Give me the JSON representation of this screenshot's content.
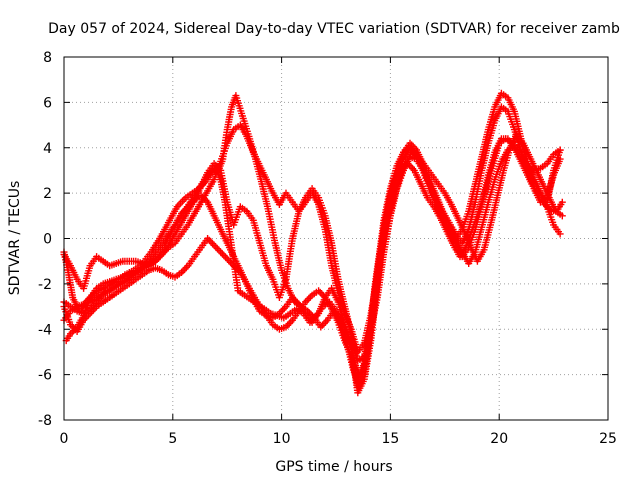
{
  "chart_data": {
    "type": "scatter",
    "title": "Day 057 of 2024, Sidereal Day-to-day VTEC variation (SDTVAR) for receiver zamb",
    "xlabel": "GPS time / hours",
    "ylabel": "SDTVAR / TECUs",
    "xlim": [
      0,
      25
    ],
    "ylim": [
      -8,
      8
    ],
    "x_ticks": [
      "0",
      "5",
      "10",
      "15",
      "20",
      "25"
    ],
    "y_ticks": [
      "-8",
      "-6",
      "-4",
      "-2",
      "0",
      "2",
      "4",
      "6",
      "8"
    ],
    "grid": true,
    "legend": "none",
    "marker": "+",
    "color": "#ff0000",
    "series": [
      {
        "x": [
          0.0,
          0.2,
          0.4,
          0.7,
          1.0,
          1.3,
          1.6,
          2.0,
          2.4,
          2.8,
          3.2,
          3.6,
          4.0,
          4.4,
          4.8,
          5.2,
          5.6,
          5.9,
          6.2,
          6.5,
          6.8,
          7.0,
          7.2,
          7.4,
          7.6,
          7.8,
          8.0,
          8.3,
          8.6,
          8.9,
          9.2,
          9.5,
          9.8,
          10.1,
          10.4,
          10.7,
          11.0,
          11.3,
          11.6,
          11.9,
          12.2,
          12.5,
          12.8,
          13.1,
          13.3,
          13.5,
          13.7,
          13.9,
          14.1,
          14.3,
          14.6,
          14.9,
          15.2,
          15.5,
          15.8,
          16.1,
          16.4,
          16.7,
          17.0,
          17.3,
          17.6,
          17.9,
          18.2,
          18.5,
          18.8,
          19.1,
          19.4,
          19.7,
          20.0,
          20.3,
          20.6,
          20.9,
          21.2,
          21.5,
          21.8,
          22.1,
          22.4,
          22.7,
          22.9
        ],
        "y": [
          -0.6,
          -1.5,
          -2.6,
          -3.2,
          -2.8,
          -2.5,
          -2.3,
          -2.1,
          -1.9,
          -1.6,
          -1.4,
          -1.1,
          -0.6,
          0.0,
          0.7,
          1.4,
          1.8,
          2.0,
          2.2,
          2.5,
          2.9,
          3.1,
          2.6,
          1.6,
          0.3,
          -1.0,
          -2.3,
          -2.5,
          -2.7,
          -2.9,
          -3.1,
          -3.3,
          -3.4,
          -3.5,
          -3.3,
          -3.1,
          -3.3,
          -3.7,
          -3.4,
          -3.0,
          -2.8,
          -3.2,
          -4.0,
          -5.0,
          -5.8,
          -6.3,
          -6.0,
          -5.2,
          -3.8,
          -2.0,
          0.0,
          1.5,
          2.6,
          3.1,
          3.3,
          3.0,
          2.4,
          1.8,
          1.4,
          0.9,
          0.3,
          -0.3,
          -0.8,
          -0.3,
          0.5,
          1.3,
          2.2,
          3.2,
          4.2,
          4.4,
          4.2,
          3.6,
          3.0,
          2.4,
          1.9,
          1.5,
          1.2,
          1.3,
          1.6
        ]
      },
      {
        "x": [
          0.0,
          0.3,
          0.6,
          0.9,
          1.2,
          1.5,
          1.8,
          2.2,
          2.6,
          3.0,
          3.4,
          3.8,
          4.2,
          4.6,
          5.0,
          5.4,
          5.8,
          6.2,
          6.6,
          6.9,
          7.1,
          7.3,
          7.5,
          7.7,
          7.9,
          8.2,
          8.5,
          8.8,
          9.1,
          9.4,
          9.7,
          10.0,
          10.3,
          10.6,
          10.9,
          11.2,
          11.5,
          11.8,
          12.1,
          12.4,
          12.7,
          13.0,
          13.2,
          13.4,
          13.6,
          13.8,
          14.0,
          14.2,
          14.5,
          14.8,
          15.1,
          15.4,
          15.7,
          16.0,
          16.3,
          16.6,
          16.9,
          17.2,
          17.5,
          17.8,
          18.1,
          18.4,
          18.7,
          19.0,
          19.3,
          19.6,
          19.9,
          20.2,
          20.5,
          20.8,
          21.1,
          21.4,
          21.7,
          22.0,
          22.3,
          22.6,
          22.9
        ],
        "y": [
          -3.6,
          -3.2,
          -3.0,
          -2.9,
          -2.8,
          -2.6,
          -2.4,
          -2.2,
          -2.0,
          -1.8,
          -1.5,
          -1.2,
          -0.8,
          -0.3,
          0.4,
          1.0,
          1.6,
          2.2,
          2.8,
          3.1,
          3.0,
          3.5,
          4.8,
          5.8,
          6.3,
          5.4,
          4.5,
          3.5,
          2.4,
          1.2,
          -0.2,
          -1.4,
          -2.2,
          -2.8,
          -3.0,
          -3.2,
          -3.5,
          -3.9,
          -3.6,
          -3.2,
          -3.5,
          -4.2,
          -4.9,
          -5.6,
          -6.0,
          -5.5,
          -4.6,
          -3.2,
          -1.4,
          0.2,
          1.6,
          2.6,
          3.4,
          3.8,
          3.6,
          3.2,
          2.8,
          2.4,
          2.0,
          1.5,
          0.9,
          0.3,
          -0.4,
          -1.0,
          -0.5,
          0.6,
          1.8,
          3.0,
          4.0,
          4.6,
          4.2,
          3.6,
          3.0,
          2.4,
          1.8,
          1.2,
          1.0
        ]
      },
      {
        "x": [
          0.0,
          0.3,
          0.6,
          0.9,
          1.2,
          1.5,
          1.8,
          2.1,
          2.4,
          2.7,
          3.0,
          3.3,
          3.6,
          3.9,
          4.2,
          4.5,
          4.8,
          5.1,
          5.4,
          5.7,
          6.0,
          6.3,
          6.6,
          6.9,
          7.2,
          7.5,
          7.8,
          8.1,
          8.4,
          8.7,
          9.0,
          9.3,
          9.6,
          9.9,
          10.2,
          10.5,
          10.8,
          11.1,
          11.4,
          11.7,
          12.0,
          12.3,
          12.6,
          12.9,
          13.2,
          13.5,
          13.8,
          14.1,
          14.4,
          14.7,
          15.0,
          15.3,
          15.6,
          15.9,
          16.2,
          16.5,
          16.8,
          17.1,
          17.4,
          17.7,
          18.0,
          18.3,
          18.6,
          18.9,
          19.2,
          19.5,
          19.8,
          20.1,
          20.4,
          20.7,
          21.0,
          21.3,
          21.6,
          21.9,
          22.2,
          22.5,
          22.8
        ],
        "y": [
          -3.0,
          -3.8,
          -4.1,
          -3.6,
          -3.3,
          -3.0,
          -2.8,
          -2.6,
          -2.4,
          -2.2,
          -2.0,
          -1.8,
          -1.6,
          -1.4,
          -1.3,
          -1.4,
          -1.6,
          -1.7,
          -1.5,
          -1.2,
          -0.8,
          -0.4,
          0.0,
          -0.3,
          -0.6,
          -0.9,
          -1.2,
          -1.5,
          -2.0,
          -2.5,
          -3.0,
          -3.4,
          -3.8,
          -4.0,
          -3.9,
          -3.6,
          -3.2,
          -2.8,
          -2.5,
          -2.3,
          -2.6,
          -3.1,
          -3.7,
          -4.5,
          -5.2,
          -6.5,
          -6.0,
          -4.0,
          -1.5,
          0.8,
          2.2,
          3.2,
          3.8,
          4.0,
          3.6,
          3.0,
          2.2,
          1.5,
          0.8,
          0.3,
          -0.2,
          -0.8,
          -0.4,
          0.4,
          1.5,
          2.8,
          3.8,
          4.4,
          4.4,
          4.0,
          3.5,
          3.2,
          3.0,
          3.1,
          3.3,
          3.7,
          3.9
        ]
      },
      {
        "x": [
          0.1,
          0.3,
          0.6,
          0.9,
          1.2,
          1.5,
          1.8,
          2.1,
          2.4,
          2.7,
          3.0,
          3.3,
          3.6,
          3.9,
          4.2,
          4.5,
          4.8,
          5.1,
          5.4,
          5.7,
          6.0,
          6.3,
          6.6,
          6.9,
          7.2,
          7.5,
          7.8,
          8.1,
          8.4,
          8.7,
          9.0,
          9.3,
          9.6,
          9.9,
          10.2,
          10.5,
          10.8,
          11.1,
          11.4,
          11.7,
          12.0,
          12.3,
          12.6,
          12.9,
          13.2,
          13.5,
          13.8,
          14.1,
          14.4,
          14.7,
          15.0,
          15.3,
          15.6,
          15.9,
          16.2,
          16.5,
          16.8,
          17.1,
          17.4,
          17.7,
          18.0,
          18.3,
          18.6,
          18.9,
          19.2,
          19.5,
          19.8,
          20.1,
          20.4,
          20.7,
          21.0,
          21.3,
          21.6,
          21.9,
          22.2,
          22.5,
          22.8
        ],
        "y": [
          -4.5,
          -4.2,
          -3.9,
          -3.4,
          -2.6,
          -2.2,
          -2.0,
          -1.9,
          -1.8,
          -1.7,
          -1.6,
          -1.5,
          -1.3,
          -1.0,
          -0.6,
          -0.2,
          0.2,
          0.6,
          1.1,
          1.4,
          1.7,
          1.9,
          1.6,
          1.0,
          0.4,
          -0.2,
          -0.8,
          -1.4,
          -2.0,
          -2.7,
          -3.2,
          -3.4,
          -3.5,
          -3.3,
          -3.0,
          -2.6,
          -2.9,
          -3.3,
          -3.7,
          -3.3,
          -2.6,
          -2.2,
          -2.8,
          -3.8,
          -4.8,
          -6.8,
          -6.2,
          -4.5,
          -2.0,
          0.5,
          2.0,
          3.1,
          3.8,
          4.2,
          3.9,
          3.3,
          2.6,
          1.9,
          1.2,
          0.6,
          0.0,
          -0.6,
          -1.1,
          -0.6,
          0.5,
          1.6,
          2.6,
          3.4,
          3.9,
          4.1,
          3.8,
          3.2,
          2.6,
          2.0,
          1.4,
          0.6,
          0.2
        ]
      },
      {
        "x": [
          0.0,
          0.3,
          0.6,
          0.9,
          1.2,
          1.5,
          1.8,
          2.1,
          2.4,
          2.7,
          3.0,
          3.3,
          3.6,
          3.9,
          4.2,
          4.5,
          4.8,
          5.1,
          5.4,
          5.7,
          6.0,
          6.3,
          6.6,
          6.9,
          7.2,
          7.5,
          7.8,
          8.1,
          8.4,
          8.7,
          9.0,
          9.3,
          9.6,
          9.9,
          10.2,
          10.5,
          10.8,
          11.1,
          11.4,
          11.7,
          12.0,
          12.3,
          12.6,
          12.9,
          13.2,
          13.5,
          13.8,
          14.1,
          14.4,
          14.7,
          15.0,
          15.3,
          15.6,
          15.9,
          16.2,
          16.5,
          16.8,
          17.1,
          17.4,
          17.7,
          18.0,
          18.3,
          18.6,
          18.9,
          19.2,
          19.5,
          19.8,
          20.1,
          20.4,
          20.7,
          21.0,
          21.3,
          21.6,
          21.9,
          22.2,
          22.5,
          22.8
        ],
        "y": [
          -0.7,
          -1.2,
          -1.8,
          -2.2,
          -1.2,
          -0.8,
          -1.0,
          -1.2,
          -1.1,
          -1.0,
          -1.0,
          -1.0,
          -1.1,
          -1.2,
          -1.0,
          -0.7,
          -0.4,
          -0.2,
          0.2,
          0.6,
          1.1,
          1.6,
          2.1,
          2.6,
          3.4,
          4.2,
          4.8,
          5.0,
          4.5,
          3.8,
          3.2,
          2.6,
          2.0,
          1.5,
          2.0,
          1.6,
          1.2,
          1.6,
          2.0,
          1.5,
          0.4,
          -1.2,
          -2.4,
          -3.3,
          -4.0,
          -5.0,
          -4.6,
          -3.4,
          -1.6,
          0.3,
          1.8,
          2.8,
          3.5,
          4.0,
          3.7,
          3.1,
          2.4,
          1.6,
          0.9,
          0.4,
          0.0,
          0.4,
          1.2,
          2.4,
          3.6,
          4.8,
          5.8,
          6.4,
          6.2,
          5.6,
          4.4,
          3.4,
          2.6,
          2.0,
          1.6,
          3.0,
          3.9
        ]
      },
      {
        "x": [
          0.0,
          0.3,
          0.6,
          0.9,
          1.2,
          1.5,
          1.8,
          2.1,
          2.4,
          2.7,
          3.0,
          3.3,
          3.6,
          3.9,
          4.2,
          4.5,
          4.8,
          5.1,
          5.4,
          5.7,
          6.0,
          6.3,
          6.6,
          6.9,
          7.2,
          7.5,
          7.8,
          8.1,
          8.4,
          8.7,
          9.0,
          9.3,
          9.6,
          9.9,
          10.2,
          10.5,
          10.8,
          11.1,
          11.4,
          11.7,
          12.0,
          12.3,
          12.6,
          12.9,
          13.2,
          13.5,
          13.8,
          14.1,
          14.4,
          14.7,
          15.0,
          15.3,
          15.6,
          15.9,
          16.2,
          16.5,
          16.8,
          17.1,
          17.4,
          17.7,
          18.0,
          18.3,
          18.6,
          18.9,
          19.2,
          19.5,
          19.8,
          20.1,
          20.4,
          20.7,
          21.0,
          21.3,
          21.6,
          21.9,
          22.2,
          22.5,
          22.8
        ],
        "y": [
          -2.8,
          -3.0,
          -3.2,
          -3.3,
          -3.1,
          -2.8,
          -2.5,
          -2.3,
          -2.1,
          -1.9,
          -1.7,
          -1.5,
          -1.3,
          -1.2,
          -1.0,
          -0.7,
          -0.3,
          0.2,
          0.7,
          1.2,
          1.7,
          2.3,
          2.9,
          3.3,
          3.0,
          1.6,
          0.6,
          1.4,
          1.2,
          0.8,
          -0.2,
          -1.2,
          -1.8,
          -2.6,
          -1.8,
          0.0,
          1.2,
          1.8,
          2.2,
          1.8,
          1.0,
          -0.2,
          -1.8,
          -3.0,
          -4.2,
          -5.4,
          -5.2,
          -4.0,
          -2.6,
          -0.6,
          1.0,
          2.2,
          3.0,
          3.6,
          3.5,
          3.0,
          2.4,
          1.8,
          1.2,
          0.7,
          0.2,
          -0.2,
          0.4,
          1.6,
          3.0,
          4.2,
          5.2,
          5.8,
          5.6,
          4.8,
          3.8,
          3.0,
          2.2,
          1.6,
          1.8,
          2.8,
          3.5
        ]
      }
    ]
  }
}
